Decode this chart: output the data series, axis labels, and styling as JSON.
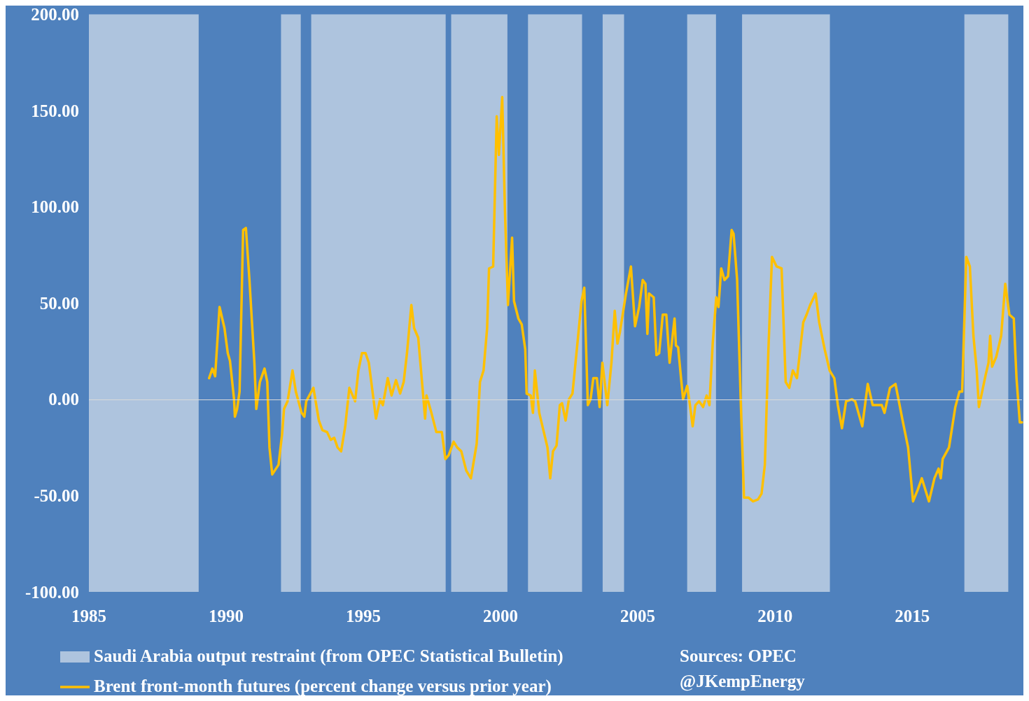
{
  "chart_data": {
    "type": "line",
    "xlim": [
      1985,
      2019
    ],
    "xticks": [
      1985,
      1990,
      1995,
      2000,
      2005,
      2010,
      2015
    ],
    "ylim": [
      -100,
      200
    ],
    "yticks": [
      {
        "value": -100,
        "label": "-100.00"
      },
      {
        "value": -50,
        "label": "-50.00"
      },
      {
        "value": 0,
        "label": "0.00"
      },
      {
        "value": 50,
        "label": "50.00"
      },
      {
        "value": 100,
        "label": "100.00"
      },
      {
        "value": 150,
        "label": "150.00"
      },
      {
        "value": 200,
        "label": "200.00"
      }
    ],
    "grid": false,
    "legend": "bottom",
    "marker": "none",
    "line_style": "solid",
    "series": [
      {
        "name": "Brent front-month futures (percent change versus prior year)",
        "color": "#ffc000",
        "x": [
          1989.38,
          1989.5,
          1989.6,
          1989.76,
          1989.94,
          1990.06,
          1990.14,
          1990.29,
          1990.32,
          1990.4,
          1990.49,
          1990.62,
          1990.72,
          1990.85,
          1991.03,
          1991.1,
          1991.23,
          1991.4,
          1991.5,
          1991.58,
          1991.68,
          1991.91,
          1992.04,
          1992.11,
          1992.24,
          1992.42,
          1992.54,
          1992.75,
          1992.85,
          1992.92,
          1993.18,
          1993.38,
          1993.51,
          1993.68,
          1993.81,
          1993.94,
          1994.06,
          1994.19,
          1994.34,
          1994.49,
          1994.7,
          1994.82,
          1994.95,
          1995.08,
          1995.2,
          1995.46,
          1995.61,
          1995.71,
          1995.89,
          1996.03,
          1996.19,
          1996.34,
          1996.47,
          1996.59,
          1996.75,
          1996.85,
          1997.0,
          1997.18,
          1997.25,
          1997.3,
          1997.48,
          1997.66,
          1997.86,
          1997.99,
          1998.11,
          1998.29,
          1998.42,
          1998.57,
          1998.75,
          1998.92,
          1999.13,
          1999.25,
          1999.38,
          1999.51,
          1999.58,
          1999.73,
          1999.86,
          1999.94,
          2000.06,
          2000.16,
          2000.27,
          2000.42,
          2000.49,
          2000.65,
          2000.77,
          2000.9,
          2000.95,
          2001.1,
          2001.18,
          2001.25,
          2001.41,
          2001.56,
          2001.71,
          2001.81,
          2001.91,
          2002.04,
          2002.16,
          2002.24,
          2002.37,
          2002.49,
          2002.62,
          2002.8,
          2002.95,
          2003.05,
          2003.18,
          2003.28,
          2003.38,
          2003.51,
          2003.61,
          2003.71,
          2003.89,
          2004.04,
          2004.16,
          2004.26,
          2004.35,
          2004.57,
          2004.75,
          2004.9,
          2005.05,
          2005.18,
          2005.28,
          2005.35,
          2005.41,
          2005.58,
          2005.68,
          2005.78,
          2005.91,
          2006.04,
          2006.16,
          2006.34,
          2006.39,
          2006.47,
          2006.65,
          2006.8,
          2006.9,
          2007.0,
          2007.1,
          2007.23,
          2007.38,
          2007.51,
          2007.61,
          2007.73,
          2007.86,
          2007.94,
          2008.04,
          2008.16,
          2008.29,
          2008.42,
          2008.49,
          2008.62,
          2008.75,
          2008.87,
          2009.03,
          2009.2,
          2009.38,
          2009.51,
          2009.63,
          2009.76,
          2009.89,
          2010.06,
          2010.24,
          2010.39,
          2010.52,
          2010.65,
          2010.8,
          2011.03,
          2011.15,
          2011.28,
          2011.48,
          2011.61,
          2011.81,
          2011.99,
          2012.16,
          2012.29,
          2012.44,
          2012.59,
          2012.8,
          2012.92,
          2013.18,
          2013.38,
          2013.56,
          2013.89,
          2013.99,
          2014.19,
          2014.39,
          2014.65,
          2014.85,
          2015.03,
          2015.2,
          2015.35,
          2015.61,
          2015.81,
          2015.96,
          2016.04,
          2016.11,
          2016.34,
          2016.57,
          2016.72,
          2016.82,
          2016.97,
          2017.1,
          2017.23,
          2017.35,
          2017.43,
          2017.68,
          2017.78,
          2017.84,
          2017.91,
          2018.06,
          2018.24,
          2018.39,
          2018.54,
          2018.7,
          2018.8,
          2018.92,
          2019.0
        ],
        "values": [
          11,
          16,
          12,
          48,
          37,
          24,
          20,
          0,
          -9,
          -5,
          4,
          88,
          89,
          62,
          19,
          -5,
          9,
          16,
          9,
          -25,
          -39,
          -34,
          -18,
          -5,
          -1,
          15,
          4,
          -7,
          -9,
          -1,
          6,
          -11,
          -16,
          -17,
          -21,
          -20,
          -25,
          -27,
          -14,
          6,
          -1,
          15,
          24,
          24,
          19,
          -10,
          0,
          -3,
          11,
          2,
          10,
          3,
          9,
          24,
          49,
          37,
          32,
          2,
          -10,
          2,
          -7,
          -17,
          -17,
          -31,
          -29,
          -22,
          -25,
          -27,
          -37,
          -41,
          -23,
          9,
          15,
          37,
          68,
          69,
          147,
          127,
          157,
          98,
          49,
          84,
          51,
          42,
          39,
          26,
          3,
          2,
          -7,
          15,
          -7,
          -16,
          -25,
          -41,
          -27,
          -24,
          -3,
          -2,
          -11,
          0,
          3,
          29,
          51,
          58,
          -3,
          0,
          11,
          11,
          -4,
          19,
          -3,
          19,
          46,
          29,
          35,
          55,
          69,
          38,
          48,
          62,
          60,
          34,
          55,
          53,
          23,
          24,
          44,
          44,
          19,
          42,
          28,
          27,
          0,
          7,
          -3,
          -14,
          -3,
          -1,
          -4,
          2,
          -3,
          29,
          53,
          48,
          68,
          62,
          64,
          88,
          86,
          62,
          0,
          -51,
          -51,
          -53,
          -52,
          -49,
          -34,
          26,
          74,
          69,
          68,
          9,
          6,
          15,
          11,
          40,
          44,
          49,
          55,
          40,
          26,
          15,
          11,
          -3,
          -15,
          -1,
          0,
          -1,
          -14,
          8,
          -3,
          -3,
          -7,
          6,
          8,
          -11,
          -25,
          -53,
          -47,
          -41,
          -53,
          -41,
          -36,
          -41,
          -31,
          -25,
          -4,
          4,
          4,
          74,
          69,
          33,
          15,
          -4,
          13,
          19,
          33,
          17,
          22,
          33,
          60,
          44,
          42,
          11,
          -12,
          -12
        ]
      }
    ],
    "bands": [
      {
        "axis": "x",
        "from": 1985,
        "to": 1989,
        "color": "#aec4de",
        "label": "Saudi Arabia output restraint (from OPEC Statistical Bulletin)"
      },
      {
        "axis": "x",
        "from": 1992,
        "to": 1992.72,
        "color": "#aec4de"
      },
      {
        "axis": "x",
        "from": 1993.1,
        "to": 1998,
        "color": "#aec4de"
      },
      {
        "axis": "x",
        "from": 1998.2,
        "to": 2000.25,
        "color": "#aec4de"
      },
      {
        "axis": "x",
        "from": 2001,
        "to": 2002.97,
        "color": "#aec4de"
      },
      {
        "axis": "x",
        "from": 2003.72,
        "to": 2004.5,
        "color": "#aec4de"
      },
      {
        "axis": "x",
        "from": 2006.8,
        "to": 2007.85,
        "color": "#aec4de"
      },
      {
        "axis": "x",
        "from": 2008.8,
        "to": 2012,
        "color": "#aec4de"
      },
      {
        "axis": "x",
        "from": 2016.9,
        "to": 2018.5,
        "color": "#aec4de"
      }
    ],
    "ref_lines": [
      {
        "axis": "y",
        "value": 0,
        "color": "#d9d9d9"
      }
    ],
    "annotations": [
      "Sources: OPEC",
      "@JKempEnergy"
    ]
  }
}
